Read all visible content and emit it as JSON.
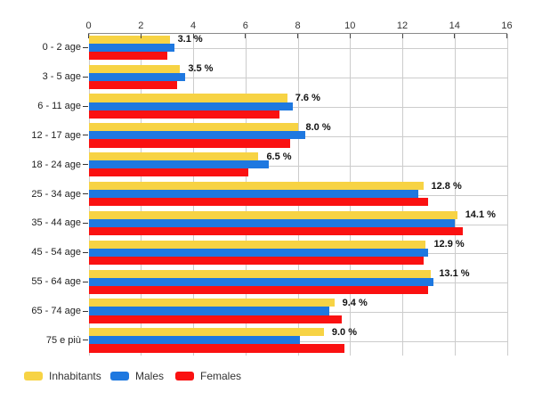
{
  "chart_data": {
    "type": "bar",
    "orientation": "horizontal",
    "title": "",
    "xlabel": "",
    "ylabel": "",
    "unit": "%",
    "categories": [
      "0 - 2 age",
      "3 - 5 age",
      "6 - 11 age",
      "12 - 17 age",
      "18 - 24 age",
      "25 - 34 age",
      "35 - 44 age",
      "45 - 54 age",
      "55 - 64 age",
      "65 - 74 age",
      "75 e più"
    ],
    "series": [
      {
        "name": "Inhabitants",
        "color": "#F7D344",
        "values": [
          3.1,
          3.5,
          7.6,
          8.0,
          6.5,
          12.8,
          14.1,
          12.9,
          13.1,
          9.4,
          9.0
        ]
      },
      {
        "name": "Males",
        "color": "#1E78E0",
        "values": [
          3.3,
          3.7,
          7.8,
          8.3,
          6.9,
          12.6,
          14.0,
          13.0,
          13.2,
          9.2,
          8.1
        ]
      },
      {
        "name": "Females",
        "color": "#FA1111",
        "values": [
          3.0,
          3.4,
          7.3,
          7.7,
          6.1,
          13.0,
          14.3,
          12.8,
          13.0,
          9.7,
          9.8
        ]
      }
    ],
    "data_labels": [
      "3.1 %",
      "3.5 %",
      "7.6 %",
      "8.0 %",
      "6.5 %",
      "12.8 %",
      "14.1 %",
      "12.9 %",
      "13.1 %",
      "9.4 %",
      "9.0 %"
    ],
    "data_labels_on_series": "Inhabitants",
    "x_axis": {
      "position": "top",
      "min": 0,
      "max": 16,
      "tick_step": 2,
      "tick_labels": [
        "0",
        "2",
        "4",
        "6",
        "8",
        "10",
        "12",
        "14",
        "16"
      ]
    },
    "grid": {
      "vertical": true,
      "horizontal": true,
      "color": "#CCCCCC"
    },
    "legend": {
      "position": "bottom-left",
      "items": [
        "Inhabitants",
        "Males",
        "Females"
      ]
    },
    "colors": {
      "background": "#FFFFFF",
      "axis_line": "#8A8A8A",
      "axis_tick": "#444444",
      "axis_label": "#333333",
      "category_label": "#222222",
      "data_label": "#111111",
      "gridline": "#CCCCCC",
      "legend_label": "#333333"
    }
  }
}
